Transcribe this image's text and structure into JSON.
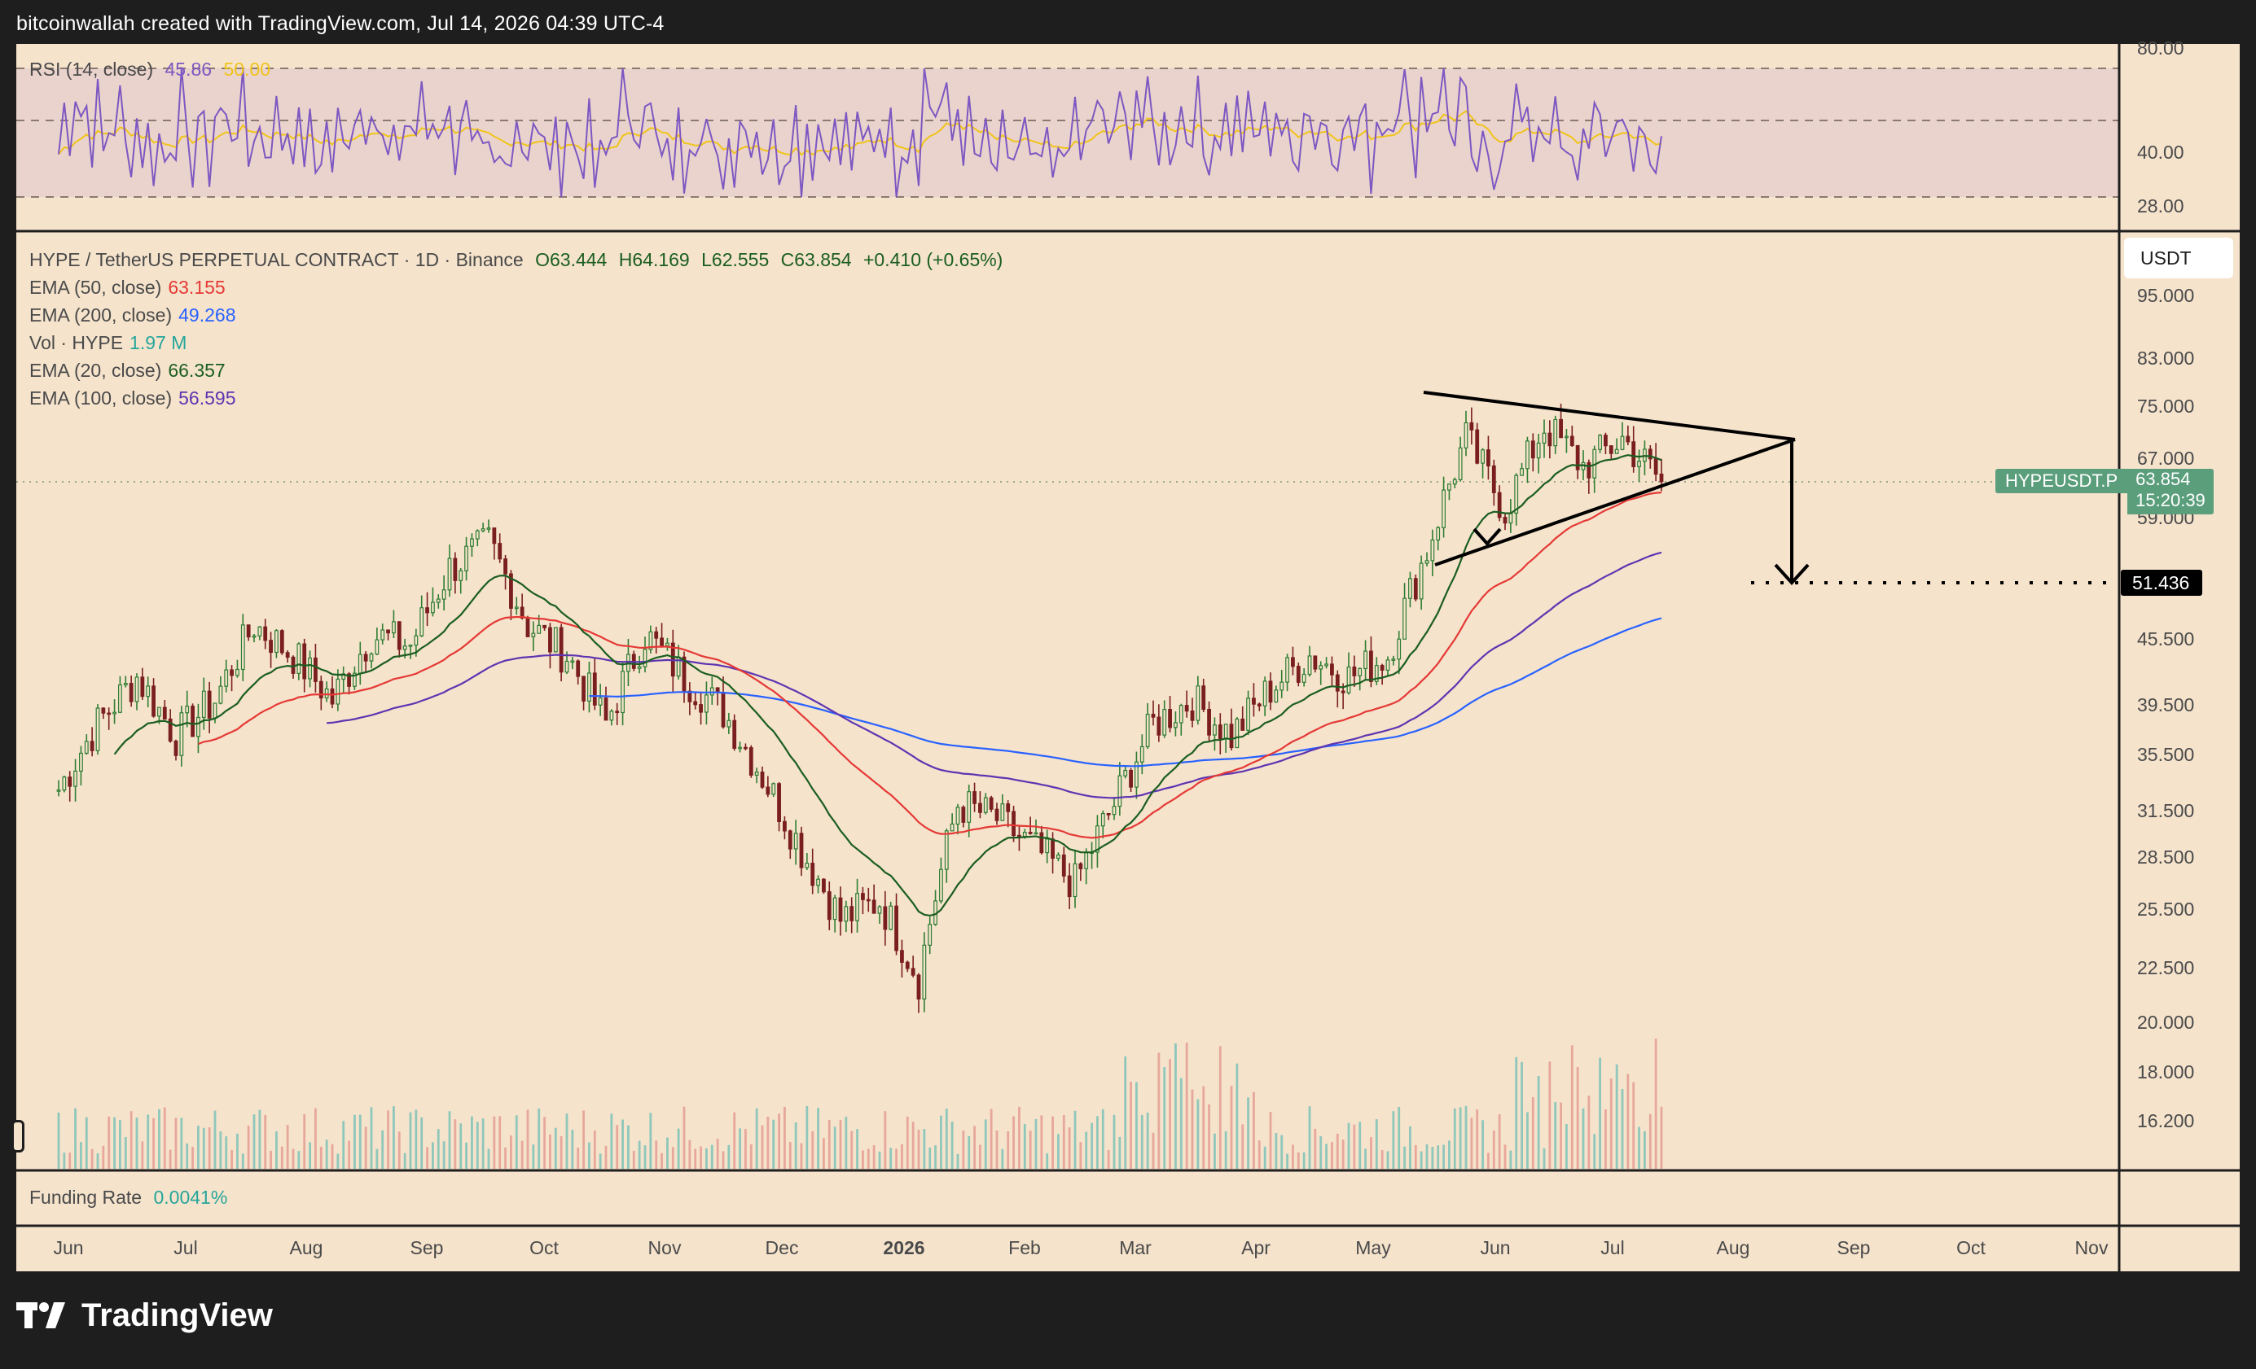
{
  "header": {
    "attribution": "bitcoinwallah created with TradingView.com, Jul 14, 2026 04:39 UTC-4"
  },
  "brand": {
    "name": "TradingView"
  },
  "rsi_pane": {
    "label": "RSI (14, close)",
    "rsi_value": "45.86",
    "ma_value": "50.00",
    "axis": [
      "80.00",
      "40.00",
      "28.00"
    ],
    "colors": {
      "rsi": "#7e57c2",
      "ma": "#f0c419",
      "band": "#e9d3cf"
    }
  },
  "main_legend": {
    "symbol": "HYPE / TetherUS PERPETUAL CONTRACT · 1D · Binance",
    "open": "O63.444",
    "high": "H64.169",
    "low": "L62.555",
    "close": "C63.854",
    "change": "+0.410 (+0.65%)",
    "indicators": [
      {
        "label": "EMA (50, close)",
        "value": "63.155",
        "color": "#e53935"
      },
      {
        "label": "EMA (200, close)",
        "value": "49.268",
        "color": "#2962ff"
      },
      {
        "label": "Vol · HYPE",
        "value": "1.97 M",
        "color": "#26a69a"
      },
      {
        "label": "EMA (20, close)",
        "value": "66.357",
        "color": "#1b5e20"
      },
      {
        "label": "EMA (100, close)",
        "value": "56.595",
        "color": "#5e35b1"
      }
    ]
  },
  "price_axis": {
    "currency_button": "USDT",
    "ticks": [
      "95.000",
      "83.000",
      "75.000",
      "67.000",
      "59.000",
      "45.500",
      "39.500",
      "35.500",
      "31.500",
      "28.500",
      "25.500",
      "22.500",
      "20.000",
      "18.000",
      "16.200"
    ],
    "current_price_tag": {
      "symbol": "HYPEUSDT.P",
      "price": "63.854",
      "countdown": "15:20:39",
      "color": "#5a9e7b"
    },
    "target_tag": {
      "price": "51.436"
    }
  },
  "time_axis": [
    "Jun",
    "Jul",
    "Aug",
    "Sep",
    "Oct",
    "Nov",
    "Dec",
    "2026",
    "Feb",
    "Mar",
    "Apr",
    "May",
    "Jun",
    "Jul",
    "Aug",
    "Sep",
    "Oct",
    "Nov"
  ],
  "funding_pane": {
    "label": "Funding Rate",
    "value": "0.0041%"
  },
  "chart_data": {
    "type": "candlestick",
    "title": "HYPE / TetherUS PERPETUAL CONTRACT · 1D · Binance",
    "ylim": [
      15,
      100
    ],
    "y_scale": "log",
    "approx_weekly_closes": [
      {
        "x": "Jun",
        "y": 33
      },
      {
        "x": "Jun",
        "y": 38
      },
      {
        "x": "Jun",
        "y": 42
      },
      {
        "x": "Jul",
        "y": 37
      },
      {
        "x": "Jul",
        "y": 40
      },
      {
        "x": "Jul",
        "y": 47
      },
      {
        "x": "Aug",
        "y": 44
      },
      {
        "x": "Aug",
        "y": 40
      },
      {
        "x": "Aug",
        "y": 46
      },
      {
        "x": "Sep",
        "y": 45
      },
      {
        "x": "Sep",
        "y": 53
      },
      {
        "x": "Sep",
        "y": 56
      },
      {
        "x": "Oct",
        "y": 47
      },
      {
        "x": "Oct",
        "y": 44
      },
      {
        "x": "Oct",
        "y": 38
      },
      {
        "x": "Nov",
        "y": 46
      },
      {
        "x": "Nov",
        "y": 42
      },
      {
        "x": "Nov",
        "y": 39
      },
      {
        "x": "Dec",
        "y": 34
      },
      {
        "x": "Dec",
        "y": 29
      },
      {
        "x": "Dec",
        "y": 25
      },
      {
        "x": "Jan",
        "y": 26
      },
      {
        "x": "Jan",
        "y": 22
      },
      {
        "x": "Jan",
        "y": 32
      },
      {
        "x": "Feb",
        "y": 31
      },
      {
        "x": "Feb",
        "y": 29
      },
      {
        "x": "Feb",
        "y": 27
      },
      {
        "x": "Mar",
        "y": 32
      },
      {
        "x": "Mar",
        "y": 38
      },
      {
        "x": "Mar",
        "y": 40
      },
      {
        "x": "Apr",
        "y": 37
      },
      {
        "x": "Apr",
        "y": 41
      },
      {
        "x": "Apr",
        "y": 44
      },
      {
        "x": "May",
        "y": 42
      },
      {
        "x": "May",
        "y": 44
      },
      {
        "x": "May",
        "y": 55
      },
      {
        "x": "Jun",
        "y": 70
      },
      {
        "x": "Jun",
        "y": 60
      },
      {
        "x": "Jun",
        "y": 72
      },
      {
        "x": "Jul",
        "y": 66
      },
      {
        "x": "Jul",
        "y": 70
      },
      {
        "x": "Jul",
        "y": 63.854
      }
    ],
    "annotations": {
      "pattern": "symmetrical triangle",
      "target_price": 51.436
    }
  }
}
